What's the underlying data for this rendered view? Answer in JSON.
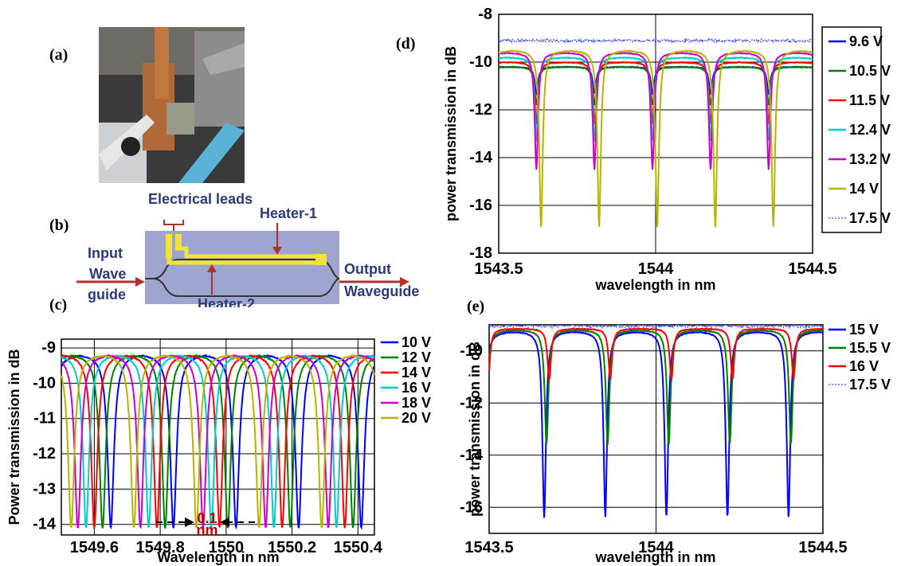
{
  "panels": {
    "a": "(a)",
    "b": "(b)",
    "c": "(c)",
    "d": "(d)",
    "e": "(e)"
  },
  "diagram": {
    "electrical_leads": "Electrical leads",
    "heater1": "Heater-1",
    "heater2": "Heater-2",
    "input": [
      "Input",
      "Wave",
      "guide"
    ],
    "output": [
      "Output",
      "Waveguide"
    ]
  },
  "annotation_c": [
    "0.1",
    "nm"
  ],
  "colors": {
    "blue": "#0000ff",
    "green": "#008000",
    "red": "#ff0000",
    "cyan": "#00cccc",
    "magenta": "#cc00cc",
    "olive": "#b5b500",
    "dotted_blue": "#3344ee"
  },
  "chart_data": [
    {
      "panel": "c",
      "type": "line",
      "xlabel": "Wavelength in nm",
      "ylabel": "Power transmission in dB",
      "xlim": [
        1549.5,
        1550.45
      ],
      "ylim": [
        -14.3,
        -8.75
      ],
      "xticks": [
        "1549.6",
        "1549.8",
        "1550",
        "1550.2",
        "1550.4"
      ],
      "xtick_values": [
        1549.6,
        1549.8,
        1550,
        1550.2,
        1550.4
      ],
      "yticks": [
        "-9",
        "-10",
        "-11",
        "-12",
        "-13",
        "-14"
      ],
      "ytick_values": [
        -9,
        -10,
        -11,
        -12,
        -13,
        -14
      ],
      "grid": true,
      "legend": "right",
      "series": [
        {
          "name": "10 V",
          "color": "#0000ff",
          "period": 0.19,
          "first_dip": 1549.65,
          "baseline": -9.15,
          "min": -14.1
        },
        {
          "name": "12 V",
          "color": "#008000",
          "period": 0.19,
          "first_dip": 1549.625,
          "baseline": -9.15,
          "min": -14.1
        },
        {
          "name": "14 V",
          "color": "#ff0000",
          "period": 0.19,
          "first_dip": 1549.6,
          "baseline": -9.15,
          "min": -14.1
        },
        {
          "name": "16 V",
          "color": "#00cccc",
          "period": 0.19,
          "first_dip": 1549.575,
          "baseline": -9.15,
          "min": -14.1
        },
        {
          "name": "18 V",
          "color": "#cc00cc",
          "period": 0.19,
          "first_dip": 1549.55,
          "baseline": -9.15,
          "min": -14.1
        },
        {
          "name": "20 V",
          "color": "#b5b500",
          "period": 0.19,
          "first_dip": 1549.53,
          "baseline": -9.15,
          "min": -14.1
        }
      ]
    },
    {
      "panel": "d",
      "type": "line",
      "xlabel": "wavelength in nm",
      "ylabel": "power transmission in dB",
      "xlim": [
        1543.5,
        1544.5
      ],
      "ylim": [
        -18,
        -8
      ],
      "xticks": [
        "1543.5",
        "1544",
        "1544.5"
      ],
      "xtick_values": [
        1543.5,
        1544,
        1544.5
      ],
      "yticks": [
        "-8",
        "-10",
        "-12",
        "-14",
        "-16",
        "-18"
      ],
      "ytick_values": [
        -8,
        -10,
        -12,
        -14,
        -16,
        -18
      ],
      "grid": true,
      "legend": "right",
      "series": [
        {
          "name": "9.6 V",
          "color": "#0000ff",
          "period": 0.185,
          "first_dip": 1543.62,
          "baseline": -10.2,
          "min": -11.3
        },
        {
          "name": "10.5 V",
          "color": "#008000",
          "period": 0.185,
          "first_dip": 1543.62,
          "baseline": -10.2,
          "min": -11.8
        },
        {
          "name": "11.5 V",
          "color": "#ff0000",
          "period": 0.185,
          "first_dip": 1543.62,
          "baseline": -10.0,
          "min": -12.6
        },
        {
          "name": "12.4 V",
          "color": "#00cccc",
          "period": 0.185,
          "first_dip": 1543.62,
          "baseline": -9.8,
          "min": -13.3
        },
        {
          "name": "13.2 V",
          "color": "#cc00cc",
          "period": 0.185,
          "first_dip": 1543.62,
          "baseline": -9.6,
          "min": -14.5
        },
        {
          "name": "14 V",
          "color": "#b5b500",
          "period": 0.185,
          "first_dip": 1543.635,
          "baseline": -9.5,
          "min": -16.9
        },
        {
          "name": "17.5 V",
          "color": "#3344ee",
          "flat": -9.1,
          "dotted": true
        }
      ]
    },
    {
      "panel": "e",
      "type": "line",
      "xlabel": "wavelength in nm",
      "ylabel": "power transmission in dB",
      "xlim": [
        1543.5,
        1544.5
      ],
      "ylim": [
        -17,
        -9
      ],
      "xticks": [
        "1543.5",
        "1544",
        "1544.5"
      ],
      "xtick_values": [
        1543.5,
        1544,
        1544.5
      ],
      "yticks": [
        "-10",
        "-12",
        "-14",
        "-16"
      ],
      "ytick_values": [
        -10,
        -12,
        -14,
        -16
      ],
      "grid": true,
      "legend": "right",
      "series": [
        {
          "name": "15 V",
          "color": "#0000ff",
          "period": 0.183,
          "first_dip": 1543.665,
          "baseline": -9.25,
          "min": -16.4
        },
        {
          "name": "15.5 V",
          "color": "#008000",
          "period": 0.183,
          "first_dip": 1543.672,
          "baseline": -9.2,
          "min": -13.6
        },
        {
          "name": "16 V",
          "color": "#ff0000",
          "period": 0.183,
          "first_dip": 1543.68,
          "baseline": -9.15,
          "min": -11.1
        },
        {
          "name": "17.5 V",
          "color": "#3344ee",
          "flat": -9.05,
          "dotted": true
        }
      ]
    }
  ]
}
